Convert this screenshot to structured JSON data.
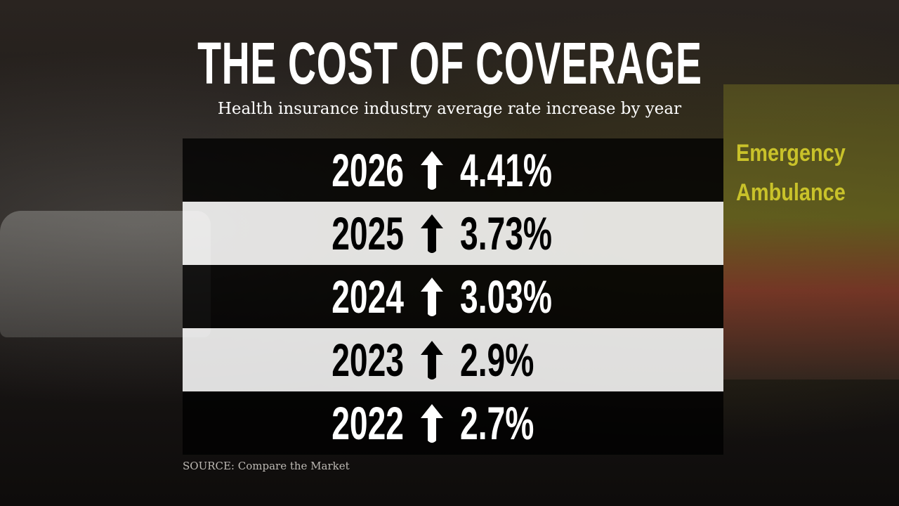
{
  "title": "THE COST OF COVERAGE",
  "subtitle": "Health insurance industry average rate increase by year",
  "background_text": [
    "Emergency",
    "Ambulance"
  ],
  "source": "SOURCE: Compare the Market",
  "colors": {
    "dark_row": "#000000",
    "light_row": "#ffffff",
    "text_light": "#ffffff",
    "text_dark": "#000000"
  },
  "chart_data": {
    "type": "table",
    "title": "THE COST OF COVERAGE",
    "subtitle": "Health insurance industry average rate increase by year",
    "rows": [
      {
        "year": "2026",
        "direction": "up-arrow-icon",
        "value": "4.41%"
      },
      {
        "year": "2025",
        "direction": "up-arrow-icon",
        "value": "3.73%"
      },
      {
        "year": "2024",
        "direction": "up-arrow-icon",
        "value": "3.03%"
      },
      {
        "year": "2023",
        "direction": "up-arrow-icon",
        "value": "2.9%"
      },
      {
        "year": "2022",
        "direction": "up-arrow-icon",
        "value": "2.7%"
      }
    ]
  }
}
